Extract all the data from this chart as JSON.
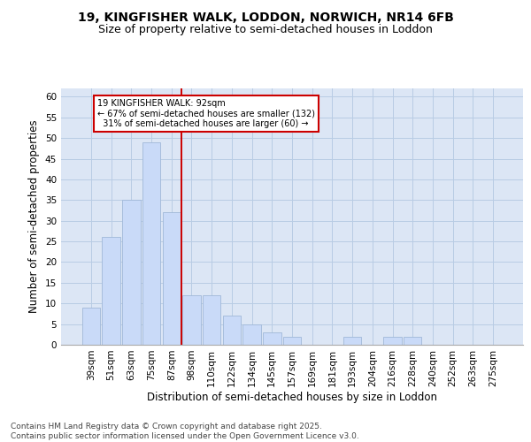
{
  "title_line1": "19, KINGFISHER WALK, LODDON, NORWICH, NR14 6FB",
  "title_line2": "Size of property relative to semi-detached houses in Loddon",
  "xlabel": "Distribution of semi-detached houses by size in Loddon",
  "ylabel": "Number of semi-detached properties",
  "categories": [
    "39sqm",
    "51sqm",
    "63sqm",
    "75sqm",
    "87sqm",
    "98sqm",
    "110sqm",
    "122sqm",
    "134sqm",
    "145sqm",
    "157sqm",
    "169sqm",
    "181sqm",
    "193sqm",
    "204sqm",
    "216sqm",
    "228sqm",
    "240sqm",
    "252sqm",
    "263sqm",
    "275sqm"
  ],
  "bar_values": [
    9,
    26,
    35,
    49,
    32,
    12,
    12,
    7,
    5,
    3,
    2,
    0,
    0,
    2,
    0,
    2,
    2,
    0,
    0,
    0,
    0
  ],
  "bar_color": "#c9daf8",
  "bar_edge_color": "#a0b8d8",
  "property_line_x": 4.5,
  "property_line_color": "#cc0000",
  "annotation_text": "19 KINGFISHER WALK: 92sqm\n← 67% of semi-detached houses are smaller (132)\n  31% of semi-detached houses are larger (60) →",
  "annotation_box_color": "#cc0000",
  "ylim": [
    0,
    62
  ],
  "yticks": [
    0,
    5,
    10,
    15,
    20,
    25,
    30,
    35,
    40,
    45,
    50,
    55,
    60
  ],
  "grid_color": "#b8cce4",
  "background_color": "#dce6f5",
  "footer_text": "Contains HM Land Registry data © Crown copyright and database right 2025.\nContains public sector information licensed under the Open Government Licence v3.0.",
  "title_fontsize": 10,
  "subtitle_fontsize": 9,
  "axis_label_fontsize": 8.5,
  "tick_fontsize": 7.5,
  "footer_fontsize": 6.5
}
